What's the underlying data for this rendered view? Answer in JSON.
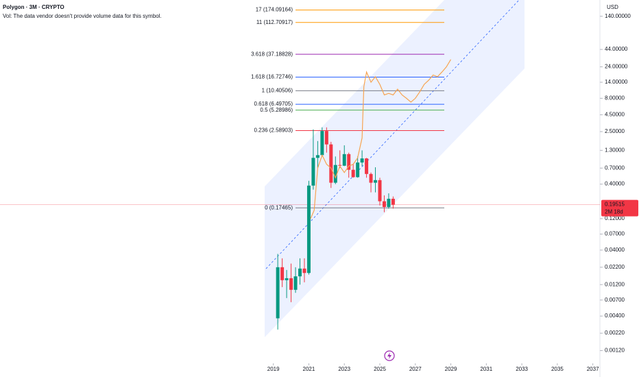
{
  "chart_data": {
    "type": "candlestick",
    "title": "Polygon · 3M · CRYPTO",
    "subtitle": "Vol: The data vendor doesn't provide volume data for this symbol.",
    "y_axis_label": "USD",
    "log_scale": true,
    "grid": false,
    "xlim": [
      2003.6,
      2037.4
    ],
    "xticks": [
      2019,
      2021,
      2023,
      2025,
      2027,
      2029,
      2031,
      2033,
      2035,
      2037
    ],
    "ylim": [
      0.00077,
      247
    ],
    "yticks": [
      {
        "value": 140,
        "label": "140.00000"
      },
      {
        "value": 44,
        "label": "44.00000"
      },
      {
        "value": 24,
        "label": "24.00000"
      },
      {
        "value": 14,
        "label": "14.00000"
      },
      {
        "value": 8,
        "label": "8.00000"
      },
      {
        "value": 4.5,
        "label": "4.50000"
      },
      {
        "value": 2.5,
        "label": "2.50000"
      },
      {
        "value": 1.3,
        "label": "1.30000"
      },
      {
        "value": 0.7,
        "label": "0.70000"
      },
      {
        "value": 0.4,
        "label": "0.40000"
      },
      {
        "value": 0.12,
        "label": "0.12000"
      },
      {
        "value": 0.07,
        "label": "0.07000"
      },
      {
        "value": 0.04,
        "label": "0.04000"
      },
      {
        "value": 0.022,
        "label": "0.02200"
      },
      {
        "value": 0.012,
        "label": "0.01200"
      },
      {
        "value": 0.007,
        "label": "0.00700"
      },
      {
        "value": 0.004,
        "label": "0.00400"
      },
      {
        "value": 0.0022,
        "label": "0.00220"
      },
      {
        "value": 0.0012,
        "label": "0.00120"
      }
    ],
    "up_color": "#089981",
    "down_color": "#f23645",
    "x": [
      2019.25,
      2019.5,
      2019.75,
      2020.0,
      2020.25,
      2020.5,
      2020.75,
      2021.0,
      2021.25,
      2021.5,
      2021.75,
      2022.0,
      2022.25,
      2022.5,
      2022.75,
      2023.0,
      2023.25,
      2023.5,
      2023.75,
      2024.0,
      2024.25,
      2024.5,
      2024.75,
      2025.0,
      2025.25,
      2025.5,
      2025.75
    ],
    "open": [
      0.0037,
      0.022,
      0.014,
      0.015,
      0.01,
      0.016,
      0.021,
      0.018,
      0.38,
      1.0,
      1.1,
      2.55,
      1.6,
      0.42,
      0.78,
      0.76,
      1.14,
      0.66,
      0.51,
      0.85,
      0.98,
      0.57,
      0.42,
      0.46,
      0.22,
      0.18,
      0.24
    ],
    "high": [
      0.035,
      0.03,
      0.02,
      0.025,
      0.022,
      0.03,
      0.03,
      0.45,
      2.7,
      1.8,
      2.9,
      2.9,
      1.75,
      1.05,
      1.3,
      1.55,
      1.2,
      0.8,
      1.05,
      1.3,
      1.0,
      0.6,
      0.72,
      0.5,
      0.27,
      0.29,
      0.26
    ],
    "low": [
      0.0025,
      0.011,
      0.0075,
      0.0065,
      0.009,
      0.012,
      0.013,
      0.017,
      0.33,
      0.7,
      1.05,
      1.2,
      0.35,
      0.4,
      0.7,
      0.75,
      0.5,
      0.5,
      0.5,
      0.75,
      0.5,
      0.3,
      0.3,
      0.19,
      0.15,
      0.17,
      0.17
    ],
    "close": [
      0.022,
      0.014,
      0.015,
      0.01,
      0.016,
      0.021,
      0.018,
      0.38,
      1.0,
      1.1,
      2.55,
      1.6,
      0.42,
      0.78,
      0.76,
      1.14,
      0.66,
      0.51,
      0.85,
      0.98,
      0.57,
      0.42,
      0.46,
      0.22,
      0.18,
      0.24,
      0.195
    ],
    "line": {
      "color": "#f7a350",
      "x": [
        2021.1,
        2021.3,
        2021.5,
        2021.75,
        2022.0,
        2022.25,
        2022.5,
        2022.75,
        2023.0,
        2023.25,
        2023.5,
        2023.75,
        2024.0,
        2024.1,
        2024.25,
        2024.5,
        2024.75,
        2025.0,
        2025.25,
        2025.5,
        2025.75,
        2026.0,
        2026.25,
        2026.5,
        2026.75,
        2027.0,
        2027.25,
        2027.5,
        2027.75,
        2028.0,
        2028.25,
        2028.5,
        2028.75,
        2029.0
      ],
      "values": [
        0.12,
        0.16,
        0.7,
        1.1,
        0.8,
        0.7,
        0.5,
        0.75,
        0.6,
        0.75,
        0.8,
        1.0,
        2.0,
        12,
        20,
        14,
        17,
        13,
        9,
        9.5,
        9,
        11,
        9,
        8,
        7,
        8,
        10,
        13,
        15,
        18,
        17,
        20,
        24,
        31
      ]
    },
    "levels": [
      {
        "value": 174.09164,
        "label": "17 (174.09164)",
        "color": "#ff9800"
      },
      {
        "value": 112.70917,
        "label": "11 (112.70917)",
        "color": "#ff9800"
      },
      {
        "value": 37.18828,
        "label": "3.618 (37.18828)",
        "color": "#9c27b0"
      },
      {
        "value": 16.72746,
        "label": "1.618 (16.72746)",
        "color": "#2962ff"
      },
      {
        "value": 10.40506,
        "label": "1 (10.40506)",
        "color": "#787b86"
      },
      {
        "value": 6.49705,
        "label": "0.618 (6.49705)",
        "color": "#2962ff"
      },
      {
        "value": 5.28986,
        "label": "0.5 (5.28986)",
        "color": "#4caf50"
      },
      {
        "value": 2.58903,
        "label": "0.236 (2.58903)",
        "color": "#f23645"
      },
      {
        "value": 0.17465,
        "label": "0 (0.17465)",
        "color": "#787b86"
      }
    ],
    "last_price": {
      "value": 0.19515,
      "label": "0.19515"
    },
    "countdown": "2M 18d"
  }
}
